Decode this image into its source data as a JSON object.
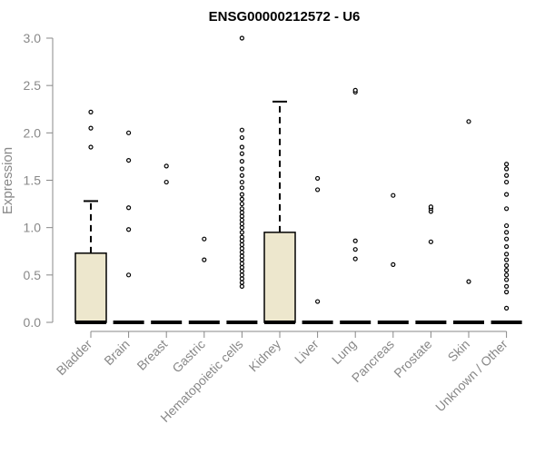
{
  "chart_data": {
    "type": "box",
    "title": "ENSG00000212572 - U6",
    "xlabel": "",
    "ylabel": "Expression",
    "ylim": [
      0,
      3.0
    ],
    "yticks": [
      "0.0",
      "0.5",
      "1.0",
      "1.5",
      "2.0",
      "2.5",
      "3.0"
    ],
    "grid": false,
    "colors": {
      "box_fill": "#ede7cd",
      "axis": "#888888",
      "stroke": "#000000"
    },
    "categories": [
      "Bladder",
      "Brain",
      "Breast",
      "Gastric",
      "Hematopoietic cells",
      "Kidney",
      "Liver",
      "Lung",
      "Pancreas",
      "Prostate",
      "Skin",
      "Unknown / Other"
    ],
    "boxes": [
      {
        "q1": 0,
        "median": 0,
        "q3": 0.73,
        "whisker_low": 0,
        "whisker_high": 1.28,
        "outliers": [
          1.85,
          2.05,
          2.22
        ]
      },
      {
        "q1": 0,
        "median": 0,
        "q3": 0,
        "whisker_low": 0,
        "whisker_high": 0,
        "outliers": [
          0.5,
          0.98,
          1.21,
          1.71,
          2.0
        ]
      },
      {
        "q1": 0,
        "median": 0,
        "q3": 0,
        "whisker_low": 0,
        "whisker_high": 0,
        "outliers": [
          1.48,
          1.65
        ]
      },
      {
        "q1": 0,
        "median": 0,
        "q3": 0,
        "whisker_low": 0,
        "whisker_high": 0,
        "outliers": [
          0.66,
          0.88
        ]
      },
      {
        "q1": 0,
        "median": 0,
        "q3": 0,
        "whisker_low": 0,
        "whisker_high": 0,
        "outliers": [
          0.38,
          0.42,
          0.46,
          0.5,
          0.54,
          0.58,
          0.62,
          0.66,
          0.7,
          0.74,
          0.78,
          0.82,
          0.86,
          0.9,
          0.95,
          1.0,
          1.04,
          1.08,
          1.12,
          1.16,
          1.2,
          1.25,
          1.3,
          1.35,
          1.42,
          1.48,
          1.55,
          1.62,
          1.7,
          1.78,
          1.85,
          1.95,
          2.03,
          3.0
        ]
      },
      {
        "q1": 0,
        "median": 0,
        "q3": 0.95,
        "whisker_low": 0,
        "whisker_high": 2.33,
        "outliers": []
      },
      {
        "q1": 0,
        "median": 0,
        "q3": 0,
        "whisker_low": 0,
        "whisker_high": 0,
        "outliers": [
          0.22,
          1.4,
          1.52
        ]
      },
      {
        "q1": 0,
        "median": 0,
        "q3": 0,
        "whisker_low": 0,
        "whisker_high": 0,
        "outliers": [
          0.67,
          0.77,
          0.86,
          2.43,
          2.45
        ]
      },
      {
        "q1": 0,
        "median": 0,
        "q3": 0,
        "whisker_low": 0,
        "whisker_high": 0,
        "outliers": [
          0.61,
          1.34
        ]
      },
      {
        "q1": 0,
        "median": 0,
        "q3": 0,
        "whisker_low": 0,
        "whisker_high": 0,
        "outliers": [
          0.85,
          1.17,
          1.2,
          1.22
        ]
      },
      {
        "q1": 0,
        "median": 0,
        "q3": 0,
        "whisker_low": 0,
        "whisker_high": 0,
        "outliers": [
          0.43,
          2.12
        ]
      },
      {
        "q1": 0,
        "median": 0,
        "q3": 0,
        "whisker_low": 0,
        "whisker_high": 0,
        "outliers": [
          0.15,
          0.32,
          0.38,
          0.45,
          0.5,
          0.55,
          0.6,
          0.66,
          0.72,
          0.8,
          0.88,
          0.95,
          1.02,
          1.2,
          1.35,
          1.48,
          1.55,
          1.62,
          1.67
        ]
      }
    ]
  }
}
